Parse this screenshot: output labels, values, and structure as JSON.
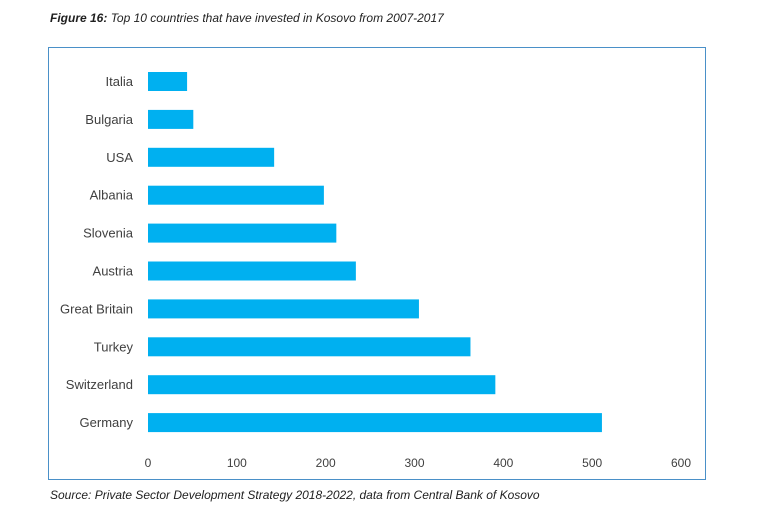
{
  "caption": {
    "label": "Figure 16:",
    "text": "Top 10 countries that have invested in Kosovo from 2007-2017"
  },
  "source": "Source: Private Sector Development Strategy 2018-2022, data from Central Bank of Kosovo",
  "chart_data": {
    "type": "bar",
    "orientation": "horizontal",
    "categories": [
      "Italia",
      "Bulgaria",
      "USA",
      "Albania",
      "Slovenia",
      "Austria",
      "Great Britain",
      "Turkey",
      "Switzerland",
      "Germany"
    ],
    "values": [
      44,
      51,
      142,
      198,
      212,
      234,
      305,
      363,
      391,
      511
    ],
    "xlim": [
      0,
      600
    ],
    "xticks": [
      0,
      100,
      200,
      300,
      400,
      500,
      600
    ],
    "grid": false,
    "bar_color": "#00b0f0"
  }
}
